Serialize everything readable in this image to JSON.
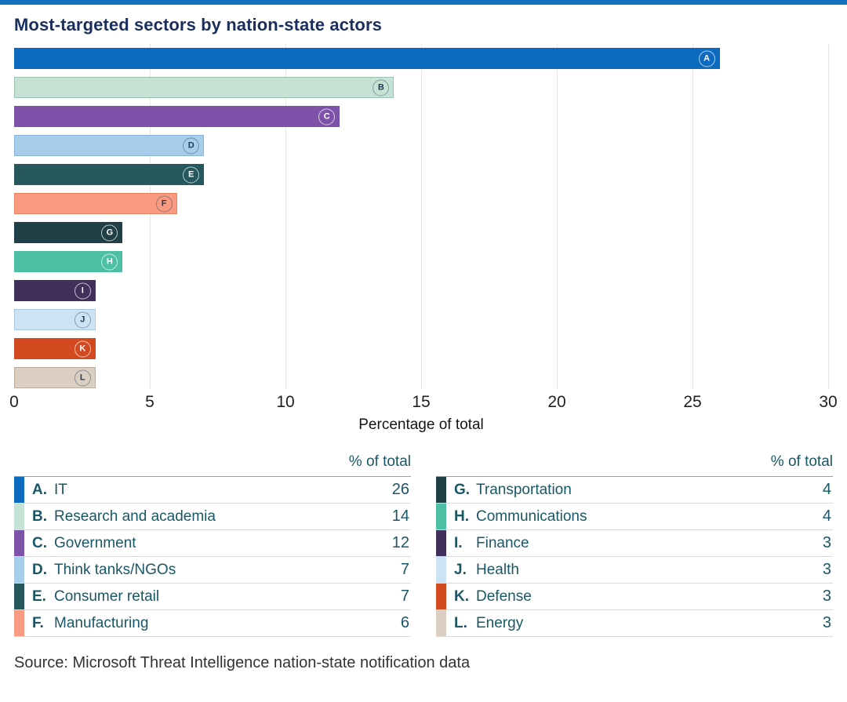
{
  "accent": {
    "top_strip_color": "#1272BE"
  },
  "title": "Most-targeted sectors by nation-state actors",
  "chart_data": {
    "type": "bar",
    "orientation": "horizontal",
    "title": "Most-targeted sectors by nation-state actors",
    "xlabel": "Percentage of total",
    "ylabel": "",
    "xlim": [
      0,
      30
    ],
    "x_ticks": [
      0,
      5,
      10,
      15,
      20,
      25,
      30
    ],
    "grid": "vertical-light",
    "bars": [
      {
        "letter": "A",
        "label": "IT",
        "value": 26,
        "color": "#0C6ABF",
        "border": "#0C6ABF",
        "dark": true
      },
      {
        "letter": "B",
        "label": "Research and academia",
        "value": 14,
        "color": "#C5E2D4",
        "border": "#9CC3B0",
        "dark": false
      },
      {
        "letter": "C",
        "label": "Government",
        "value": 12,
        "color": "#7D52A8",
        "border": "#7D52A8",
        "dark": true
      },
      {
        "letter": "D",
        "label": "Think tanks/NGOs",
        "value": 7,
        "color": "#A6CDE9",
        "border": "#87B5D9",
        "dark": false
      },
      {
        "letter": "E",
        "label": "Consumer retail",
        "value": 7,
        "color": "#26585E",
        "border": "#26585E",
        "dark": true
      },
      {
        "letter": "F",
        "label": "Manufacturing",
        "value": 6,
        "color": "#F89B81",
        "border": "#E98263",
        "dark": false
      },
      {
        "letter": "G",
        "label": "Transportation",
        "value": 4,
        "color": "#203F46",
        "border": "#203F46",
        "dark": true
      },
      {
        "letter": "H",
        "label": "Communications",
        "value": 4,
        "color": "#4CBFA4",
        "border": "#4CBFA4",
        "dark": true
      },
      {
        "letter": "I",
        "label": "Finance",
        "value": 3,
        "color": "#41305B",
        "border": "#41305B",
        "dark": true
      },
      {
        "letter": "J",
        "label": "Health",
        "value": 3,
        "color": "#CCE3F4",
        "border": "#A6C8E4",
        "dark": false
      },
      {
        "letter": "K",
        "label": "Defense",
        "value": 3,
        "color": "#D34920",
        "border": "#D34920",
        "dark": true
      },
      {
        "letter": "L",
        "label": "Energy",
        "value": 3,
        "color": "#DBCEC2",
        "border": "#BFAC9C",
        "dark": false
      }
    ]
  },
  "legend_tables": {
    "value_header": "% of total",
    "left": [
      {
        "letter": "A.",
        "label": "IT",
        "value": "26"
      },
      {
        "letter": "B.",
        "label": "Research and academia",
        "value": "14"
      },
      {
        "letter": "C.",
        "label": "Government",
        "value": "12"
      },
      {
        "letter": "D.",
        "label": "Think tanks/NGOs",
        "value": "7"
      },
      {
        "letter": "E.",
        "label": "Consumer retail",
        "value": "7"
      },
      {
        "letter": "F.",
        "label": "Manufacturing",
        "value": "6"
      }
    ],
    "right": [
      {
        "letter": "G.",
        "label": "Transportation",
        "value": "4"
      },
      {
        "letter": "H.",
        "label": "Communications",
        "value": "4"
      },
      {
        "letter": "I.",
        "label": "Finance",
        "value": "3"
      },
      {
        "letter": "J.",
        "label": "Health",
        "value": "3"
      },
      {
        "letter": "K.",
        "label": "Defense",
        "value": "3"
      },
      {
        "letter": "L.",
        "label": "Energy",
        "value": "3"
      }
    ]
  },
  "source": "Source: Microsoft Threat Intelligence nation-state notification data"
}
